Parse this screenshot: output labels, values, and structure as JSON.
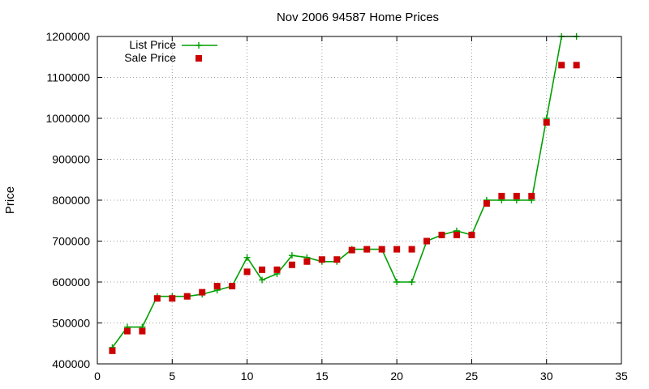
{
  "chart_data": {
    "type": "line",
    "title": "Nov 2006 94587 Home Prices",
    "xlabel": "",
    "ylabel": "Price",
    "xlim": [
      0,
      35
    ],
    "ylim": [
      400000,
      1200000
    ],
    "xticks": [
      0,
      5,
      10,
      15,
      20,
      25,
      30,
      35
    ],
    "yticks": [
      400000,
      500000,
      600000,
      700000,
      800000,
      900000,
      1000000,
      1100000,
      1200000
    ],
    "grid": true,
    "legend_position": "top-left",
    "series": [
      {
        "name": "List Price",
        "style": "line-with-plus-markers",
        "color": "#00a000",
        "x": [
          1,
          2,
          3,
          4,
          5,
          6,
          7,
          8,
          9,
          10,
          11,
          12,
          13,
          14,
          15,
          16,
          17,
          18,
          19,
          20,
          21,
          22,
          23,
          24,
          25,
          26,
          27,
          28,
          29,
          30,
          31,
          32
        ],
        "y": [
          440000,
          490000,
          490000,
          565000,
          565000,
          565000,
          570000,
          580000,
          590000,
          660000,
          605000,
          620000,
          665000,
          660000,
          650000,
          650000,
          680000,
          680000,
          680000,
          600000,
          600000,
          700000,
          715000,
          725000,
          715000,
          800000,
          800000,
          800000,
          800000,
          1000000,
          1200000,
          1200000
        ]
      },
      {
        "name": "Sale Price",
        "style": "square-markers",
        "color": "#cc0000",
        "x": [
          1,
          2,
          3,
          4,
          5,
          6,
          7,
          8,
          9,
          10,
          11,
          12,
          13,
          14,
          15,
          16,
          17,
          18,
          19,
          20,
          21,
          22,
          23,
          24,
          25,
          26,
          27,
          28,
          29,
          30,
          31,
          32
        ],
        "y": [
          432000,
          480000,
          480000,
          560000,
          560000,
          565000,
          575000,
          590000,
          590000,
          625000,
          630000,
          630000,
          642000,
          650000,
          655000,
          655000,
          678000,
          680000,
          680000,
          680000,
          680000,
          700000,
          715000,
          715000,
          715000,
          792000,
          810000,
          810000,
          810000,
          990000,
          1130000,
          1130000
        ]
      }
    ]
  }
}
